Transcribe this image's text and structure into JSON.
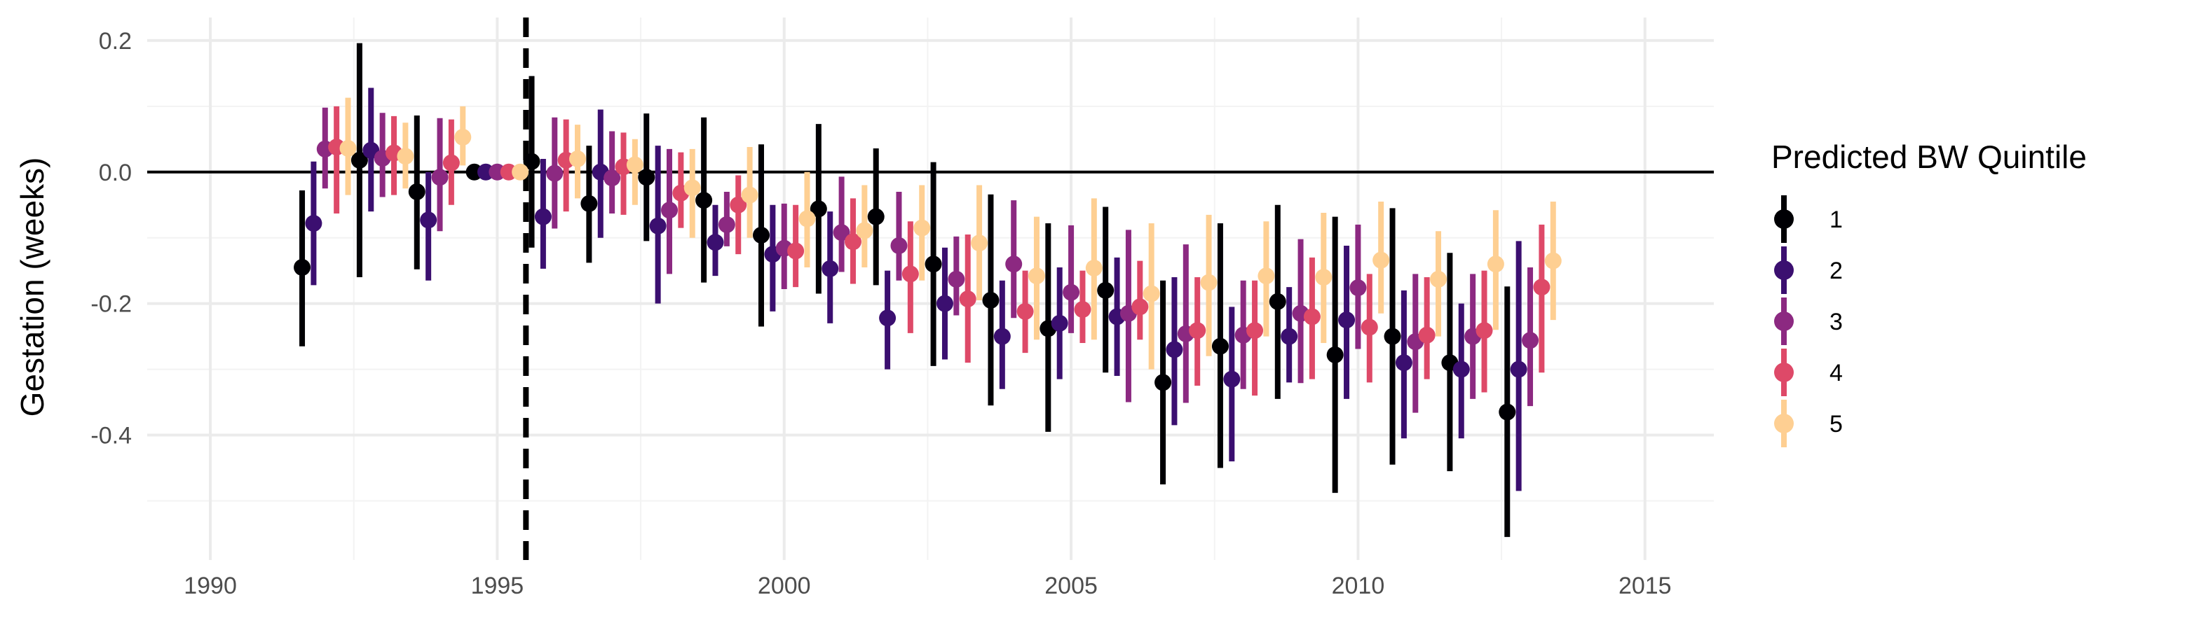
{
  "chart_data": {
    "type": "scatter",
    "subtype": "point-range event study",
    "title": "",
    "xlabel": "",
    "ylabel": "Gestation (weeks)",
    "xlim": [
      1988.9,
      2016.2
    ],
    "ylim": [
      -0.59,
      0.235
    ],
    "x_ticks": [
      1990,
      1995,
      2000,
      2005,
      2010,
      2015
    ],
    "x_tick_labels": [
      "1990",
      "1995",
      "2000",
      "2005",
      "2010",
      "2015"
    ],
    "y_ticks": [
      0.2,
      0.0,
      -0.2,
      -0.4
    ],
    "y_tick_labels": [
      "0.2",
      "0.0",
      "-0.2",
      "-0.4"
    ],
    "grid": true,
    "zero_line": 0,
    "event_line": 1995.5,
    "years": [
      1992,
      1993,
      1994,
      1995,
      1996,
      1997,
      1998,
      1999,
      2000,
      2001,
      2002,
      2003,
      2004,
      2005,
      2006,
      2007,
      2008,
      2009,
      2010,
      2011,
      2012,
      2013
    ],
    "legend": {
      "title": "Predicted BW Quintile",
      "position": "right"
    },
    "series": [
      {
        "name": "1",
        "color": "#000004",
        "values": [
          -0.145,
          0.018,
          -0.03,
          0.0,
          0.016,
          -0.048,
          -0.008,
          -0.043,
          -0.096,
          -0.056,
          -0.068,
          -0.14,
          -0.195,
          -0.238,
          -0.18,
          -0.32,
          -0.265,
          -0.197,
          -0.278,
          -0.25,
          -0.29,
          -0.365
        ],
        "lower": [
          -0.265,
          -0.16,
          -0.148,
          0.0,
          -0.115,
          -0.138,
          -0.105,
          -0.168,
          -0.235,
          -0.185,
          -0.172,
          -0.295,
          -0.355,
          -0.395,
          -0.305,
          -0.475,
          -0.45,
          -0.345,
          -0.488,
          -0.445,
          -0.455,
          -0.555
        ],
        "upper": [
          -0.028,
          0.196,
          0.086,
          0.0,
          0.146,
          0.04,
          0.089,
          0.083,
          0.042,
          0.073,
          0.036,
          0.015,
          -0.034,
          -0.078,
          -0.053,
          -0.165,
          -0.078,
          -0.05,
          -0.068,
          -0.055,
          -0.123,
          -0.174
        ]
      },
      {
        "name": "2",
        "color": "#3b0f70",
        "values": [
          -0.078,
          0.033,
          -0.073,
          0.0,
          -0.068,
          0.0,
          -0.082,
          -0.107,
          -0.125,
          -0.147,
          -0.222,
          -0.2,
          -0.25,
          -0.23,
          -0.22,
          -0.27,
          -0.315,
          -0.25,
          -0.225,
          -0.29,
          -0.3,
          -0.3
        ],
        "lower": [
          -0.172,
          -0.06,
          -0.165,
          0.0,
          -0.147,
          -0.1,
          -0.2,
          -0.158,
          -0.212,
          -0.23,
          -0.3,
          -0.285,
          -0.33,
          -0.315,
          -0.31,
          -0.385,
          -0.44,
          -0.32,
          -0.345,
          -0.405,
          -0.405,
          -0.485
        ],
        "upper": [
          0.016,
          0.128,
          0.0,
          0.0,
          0.02,
          0.095,
          0.04,
          -0.05,
          -0.05,
          -0.06,
          -0.15,
          -0.115,
          -0.165,
          -0.145,
          -0.13,
          -0.16,
          -0.205,
          -0.175,
          -0.112,
          -0.18,
          -0.2,
          -0.105
        ]
      },
      {
        "name": "3",
        "color": "#8c2981",
        "values": [
          0.035,
          0.021,
          -0.008,
          0.0,
          -0.002,
          -0.009,
          -0.058,
          -0.08,
          -0.116,
          -0.092,
          -0.112,
          -0.163,
          -0.14,
          -0.183,
          -0.215,
          -0.246,
          -0.248,
          -0.215,
          -0.176,
          -0.258,
          -0.25,
          -0.256
        ],
        "lower": [
          -0.025,
          -0.038,
          -0.09,
          0.0,
          -0.086,
          -0.063,
          -0.155,
          -0.113,
          -0.178,
          -0.152,
          -0.165,
          -0.218,
          -0.222,
          -0.245,
          -0.35,
          -0.351,
          -0.33,
          -0.321,
          -0.269,
          -0.366,
          -0.345,
          -0.356
        ],
        "upper": [
          0.098,
          0.09,
          0.082,
          0.0,
          0.083,
          0.062,
          0.035,
          -0.03,
          -0.048,
          -0.007,
          -0.03,
          -0.098,
          -0.043,
          -0.081,
          -0.088,
          -0.11,
          -0.165,
          -0.102,
          -0.08,
          -0.155,
          -0.155,
          -0.145
        ]
      },
      {
        "name": "4",
        "color": "#de4968",
        "values": [
          0.038,
          0.029,
          0.014,
          0.0,
          0.018,
          0.008,
          -0.032,
          -0.05,
          -0.12,
          -0.106,
          -0.155,
          -0.193,
          -0.212,
          -0.209,
          -0.205,
          -0.241,
          -0.241,
          -0.22,
          -0.236,
          -0.248,
          -0.241,
          -0.175
        ],
        "lower": [
          -0.063,
          -0.035,
          -0.05,
          0.0,
          -0.06,
          -0.065,
          -0.085,
          -0.125,
          -0.175,
          -0.17,
          -0.245,
          -0.29,
          -0.275,
          -0.26,
          -0.255,
          -0.325,
          -0.34,
          -0.315,
          -0.32,
          -0.315,
          -0.335,
          -0.305
        ],
        "upper": [
          0.1,
          0.085,
          0.08,
          0.0,
          0.08,
          0.06,
          0.03,
          -0.005,
          -0.05,
          -0.04,
          -0.075,
          -0.095,
          -0.15,
          -0.15,
          -0.135,
          -0.16,
          -0.165,
          -0.13,
          -0.155,
          -0.16,
          -0.15,
          -0.08
        ]
      },
      {
        "name": "5",
        "color": "#fecf92",
        "values": [
          0.036,
          0.024,
          0.053,
          0.0,
          0.02,
          0.011,
          -0.024,
          -0.035,
          -0.071,
          -0.089,
          -0.085,
          -0.108,
          -0.158,
          -0.146,
          -0.185,
          -0.168,
          -0.158,
          -0.16,
          -0.134,
          -0.163,
          -0.14,
          -0.135
        ],
        "lower": [
          -0.035,
          -0.025,
          0.01,
          0.0,
          -0.04,
          -0.05,
          -0.1,
          -0.1,
          -0.145,
          -0.145,
          -0.165,
          -0.195,
          -0.255,
          -0.255,
          -0.3,
          -0.28,
          -0.25,
          -0.26,
          -0.215,
          -0.25,
          -0.24,
          -0.225
        ],
        "upper": [
          0.113,
          0.075,
          0.1,
          0.0,
          0.072,
          0.05,
          0.035,
          0.038,
          0.0,
          -0.02,
          -0.02,
          -0.02,
          -0.068,
          -0.04,
          -0.078,
          -0.065,
          -0.075,
          -0.062,
          -0.045,
          -0.09,
          -0.058,
          -0.045
        ]
      }
    ]
  }
}
